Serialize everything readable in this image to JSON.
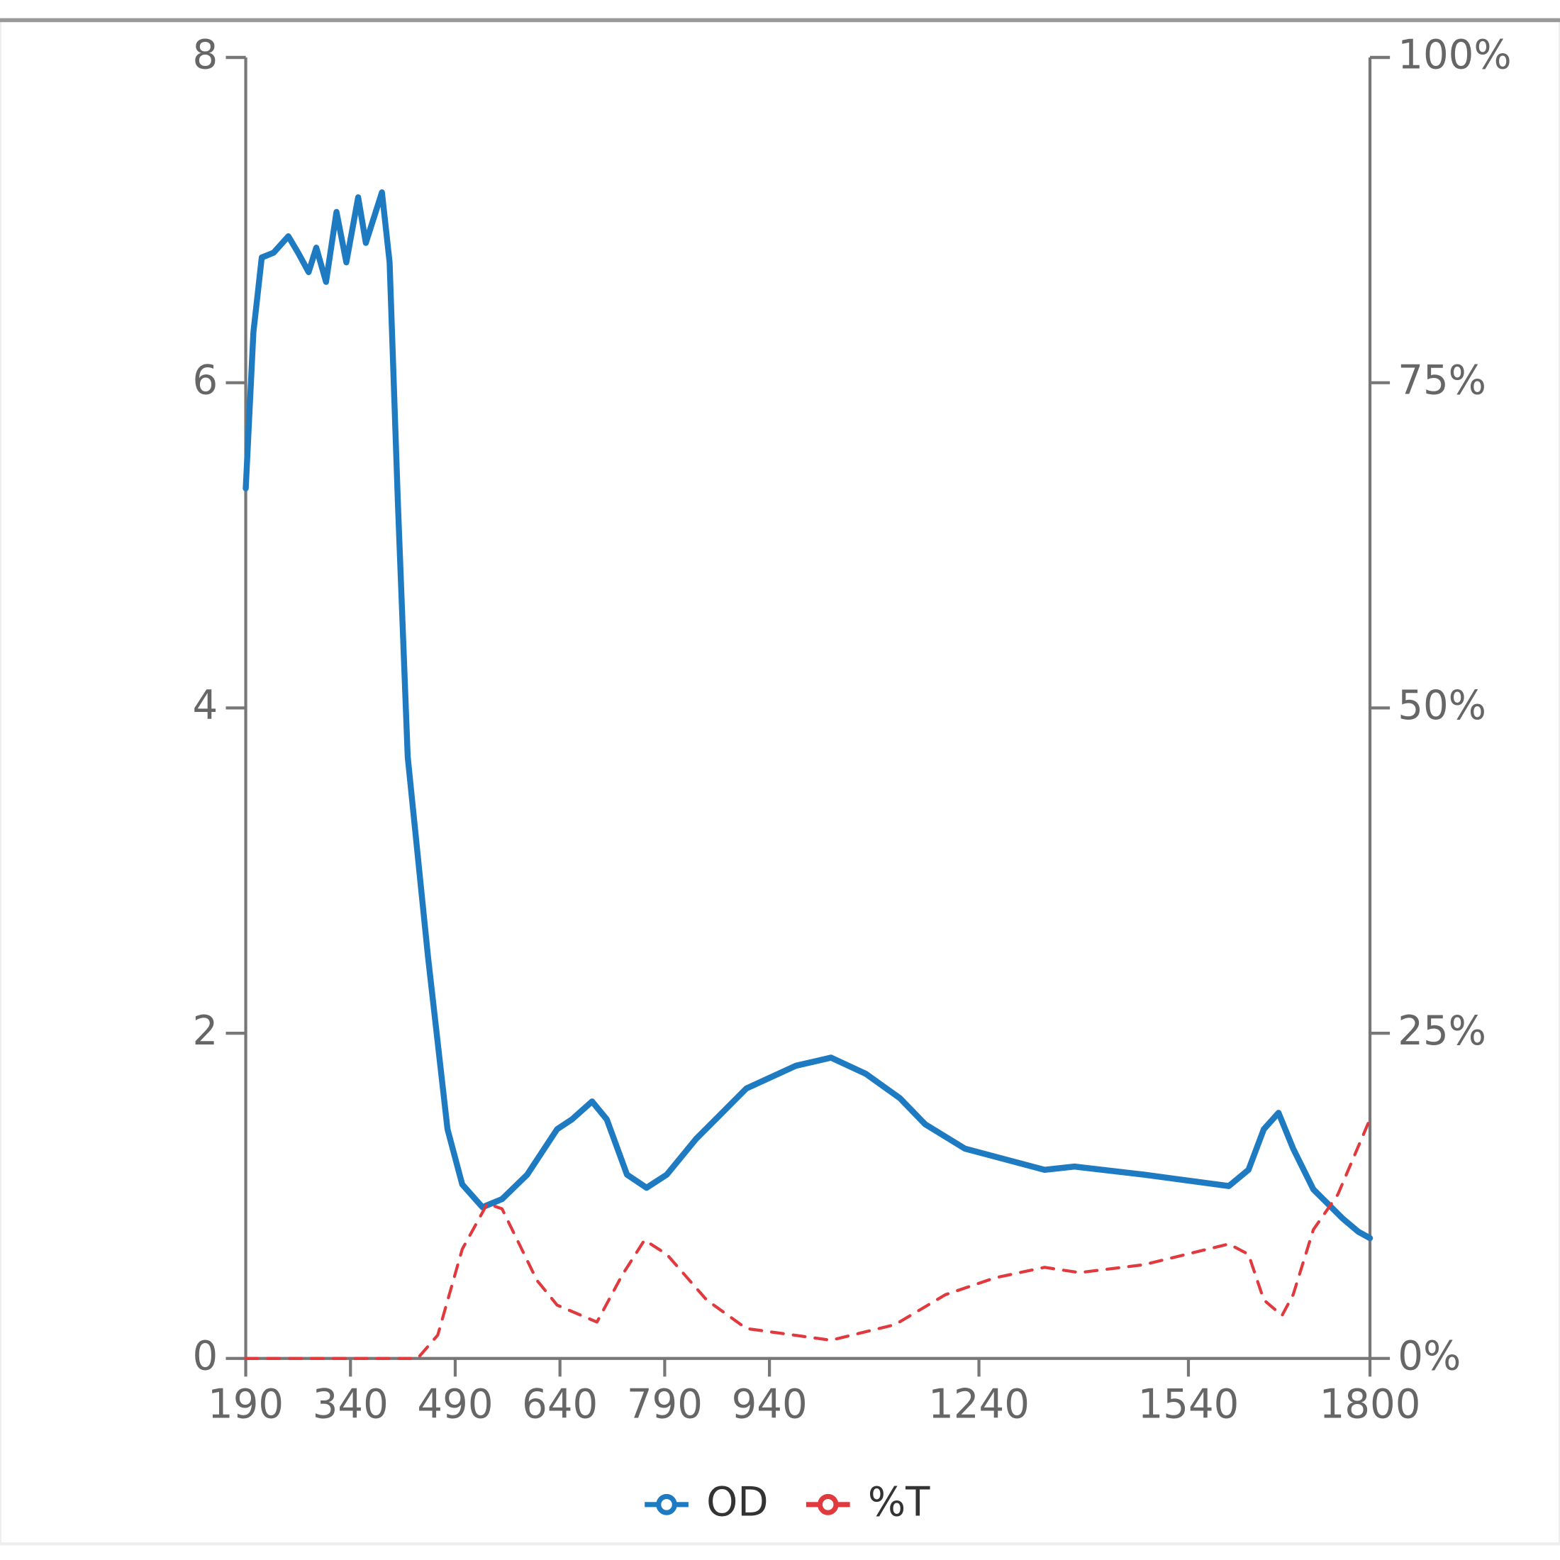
{
  "chart_data": {
    "type": "line",
    "series": [
      {
        "name": "OD",
        "color": "#1f7bc1",
        "dash": false,
        "x": [
          190,
          201,
          213,
          230,
          251,
          265,
          280,
          291,
          305,
          320,
          334,
          351,
          362,
          385,
          396,
          408,
          422,
          451,
          479,
          500,
          529,
          557,
          593,
          636,
          657,
          686,
          707,
          736,
          764,
          793,
          835,
          907,
          978,
          1028,
          1078,
          1127,
          1163,
          1220,
          1334,
          1377,
          1476,
          1598,
          1626,
          1648,
          1669,
          1690,
          1719,
          1740,
          1761,
          1783,
          1800
        ],
        "values": [
          5.35,
          6.31,
          6.77,
          6.8,
          6.9,
          6.8,
          6.68,
          6.83,
          6.62,
          7.05,
          6.74,
          7.14,
          6.86,
          7.17,
          6.74,
          5.25,
          3.7,
          2.47,
          1.41,
          1.07,
          0.93,
          0.98,
          1.13,
          1.41,
          1.47,
          1.58,
          1.47,
          1.13,
          1.05,
          1.13,
          1.35,
          1.66,
          1.8,
          1.85,
          1.75,
          1.6,
          1.44,
          1.29,
          1.16,
          1.18,
          1.13,
          1.06,
          1.16,
          1.41,
          1.51,
          1.29,
          1.04,
          0.95,
          0.86,
          0.78,
          0.74
        ]
      },
      {
        "name": "%T",
        "color": "#e0393e",
        "dash": true,
        "axis": "y2",
        "x": [
          190,
          436,
          465,
          500,
          536,
          557,
          607,
          636,
          693,
          729,
          761,
          793,
          850,
          907,
          1028,
          1120,
          1192,
          1263,
          1334,
          1384,
          1476,
          1598,
          1626,
          1648,
          1674,
          1690,
          1719,
          1754,
          1800
        ],
        "values": [
          0,
          0,
          1.8,
          8.4,
          11.9,
          11.5,
          6.0,
          4.1,
          2.8,
          6.4,
          9.1,
          8.0,
          4.5,
          2.3,
          1.4,
          2.6,
          4.9,
          6.2,
          7.0,
          6.6,
          7.2,
          8.8,
          8.0,
          4.5,
          3.3,
          4.9,
          9.9,
          12.6,
          18.4
        ]
      }
    ],
    "xlim": [
      190,
      1800
    ],
    "xticks": [
      190,
      340,
      490,
      640,
      790,
      940,
      1240,
      1540,
      1800
    ],
    "ylim": [
      0,
      8
    ],
    "yticks": [
      0,
      2,
      4,
      6,
      8
    ],
    "y2lim": [
      0,
      100
    ],
    "y2ticks": [
      {
        "value": 0,
        "label": "0%"
      },
      {
        "value": 25,
        "label": "25%"
      },
      {
        "value": 50,
        "label": "50%"
      },
      {
        "value": 75,
        "label": "75%"
      },
      {
        "value": 100,
        "label": "100%"
      }
    ],
    "legend": "bottom"
  }
}
